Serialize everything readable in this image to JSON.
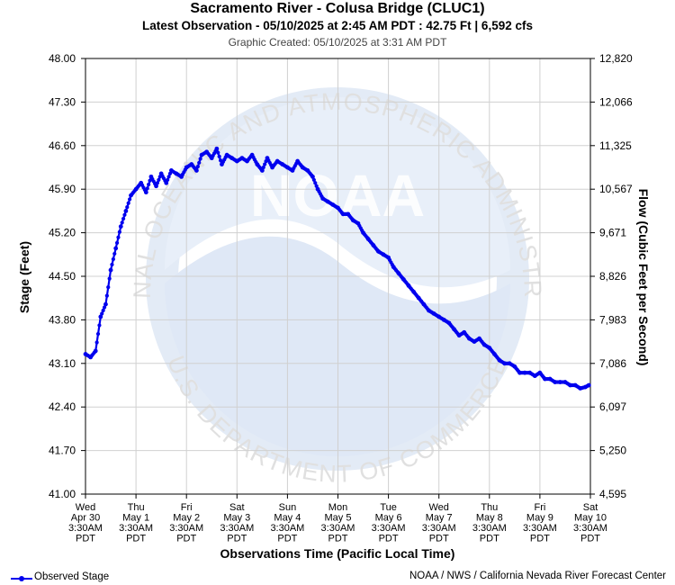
{
  "header": {
    "title": "Sacramento River - Colusa Bridge (CLUC1)",
    "subtitle": "Latest Observation - 05/10/2025 at 2:45 AM PDT : 42.75 Ft | 6,592 cfs",
    "created": "Graphic Created: 05/10/2025 at 3:31 AM PDT"
  },
  "watermark": {
    "ring_text_top": "NATIONAL OCEANIC AND ATMOSPHERIC ADMINISTRATION",
    "ring_text_bottom": "U.S. DEPARTMENT OF COMMERCE",
    "center_text": "NOAA"
  },
  "footer": {
    "legend_label": "Observed Stage",
    "credit": "NOAA / NWS / California Nevada River Forecast Center"
  },
  "colors": {
    "series": "#0000ee",
    "grid": "#d0d0d0",
    "axis": "#000000",
    "watermark": "#dde7f5"
  },
  "chart_data": {
    "type": "line",
    "xlabel": "Observations Time (Pacific Local Time)",
    "ylabel": "Stage (Feet)",
    "y2label": "Flow (Cubic Feet per Second)",
    "ylim": [
      41.0,
      48.0
    ],
    "yticks": [
      "41.00",
      "41.70",
      "42.40",
      "43.10",
      "43.80",
      "44.50",
      "45.20",
      "45.90",
      "46.60",
      "47.30",
      "48.00"
    ],
    "y2ticks": [
      "4,595",
      "5,250",
      "6,097",
      "7,086",
      "7,983",
      "8,826",
      "9,671",
      "10,567",
      "11,325",
      "12,066",
      "12,820"
    ],
    "xticks": [
      [
        "Wed",
        "Apr 30",
        "3:30AM",
        "PDT"
      ],
      [
        "Thu",
        "May 1",
        "3:30AM",
        "PDT"
      ],
      [
        "Fri",
        "May 2",
        "3:30AM",
        "PDT"
      ],
      [
        "Sat",
        "May 3",
        "3:30AM",
        "PDT"
      ],
      [
        "Sun",
        "May 4",
        "3:30AM",
        "PDT"
      ],
      [
        "Mon",
        "May 5",
        "3:30AM",
        "PDT"
      ],
      [
        "Tue",
        "May 6",
        "3:30AM",
        "PDT"
      ],
      [
        "Wed",
        "May 7",
        "3:30AM",
        "PDT"
      ],
      [
        "Thu",
        "May 8",
        "3:30AM",
        "PDT"
      ],
      [
        "Fri",
        "May 9",
        "3:30AM",
        "PDT"
      ],
      [
        "Sat",
        "May 10",
        "3:30AM",
        "PDT"
      ]
    ],
    "grid": true,
    "legend_position": "bottom-left",
    "series": [
      {
        "name": "Observed Stage",
        "x_unit": "days since Apr 30 3:30AM",
        "x": [
          0.0,
          0.1,
          0.2,
          0.3,
          0.4,
          0.5,
          0.6,
          0.7,
          0.8,
          0.9,
          1.0,
          1.1,
          1.2,
          1.3,
          1.4,
          1.5,
          1.6,
          1.7,
          1.8,
          1.9,
          2.0,
          2.1,
          2.2,
          2.3,
          2.4,
          2.5,
          2.6,
          2.7,
          2.8,
          2.9,
          3.0,
          3.1,
          3.2,
          3.3,
          3.4,
          3.5,
          3.6,
          3.7,
          3.8,
          3.9,
          4.0,
          4.1,
          4.2,
          4.3,
          4.4,
          4.5,
          4.6,
          4.7,
          4.8,
          4.9,
          5.0,
          5.1,
          5.2,
          5.3,
          5.4,
          5.5,
          5.6,
          5.7,
          5.8,
          5.9,
          6.0,
          6.1,
          6.2,
          6.3,
          6.4,
          6.5,
          6.6,
          6.7,
          6.8,
          6.9,
          7.0,
          7.1,
          7.2,
          7.3,
          7.4,
          7.5,
          7.6,
          7.7,
          7.8,
          7.9,
          8.0,
          8.1,
          8.2,
          8.3,
          8.4,
          8.5,
          8.6,
          8.7,
          8.8,
          8.9,
          9.0,
          9.1,
          9.2,
          9.3,
          9.4,
          9.5,
          9.6,
          9.7,
          9.8,
          9.9,
          9.97
        ],
        "y": [
          43.25,
          43.2,
          43.3,
          43.85,
          44.05,
          44.6,
          44.95,
          45.3,
          45.55,
          45.8,
          45.9,
          46.0,
          45.85,
          46.1,
          45.95,
          46.15,
          46.0,
          46.2,
          46.15,
          46.1,
          46.25,
          46.3,
          46.2,
          46.45,
          46.5,
          46.4,
          46.55,
          46.3,
          46.45,
          46.4,
          46.35,
          46.4,
          46.35,
          46.45,
          46.3,
          46.2,
          46.4,
          46.25,
          46.35,
          46.3,
          46.25,
          46.2,
          46.35,
          46.25,
          46.2,
          46.1,
          45.9,
          45.75,
          45.7,
          45.65,
          45.6,
          45.5,
          45.5,
          45.4,
          45.35,
          45.2,
          45.1,
          45.0,
          44.9,
          44.85,
          44.8,
          44.65,
          44.55,
          44.45,
          44.35,
          44.25,
          44.15,
          44.05,
          43.95,
          43.9,
          43.85,
          43.8,
          43.75,
          43.65,
          43.55,
          43.6,
          43.5,
          43.45,
          43.5,
          43.4,
          43.35,
          43.25,
          43.15,
          43.1,
          43.1,
          43.05,
          42.95,
          42.95,
          42.95,
          42.9,
          42.95,
          42.85,
          42.85,
          42.8,
          42.8,
          42.8,
          42.75,
          42.75,
          42.7,
          42.72,
          42.75
        ]
      }
    ]
  }
}
